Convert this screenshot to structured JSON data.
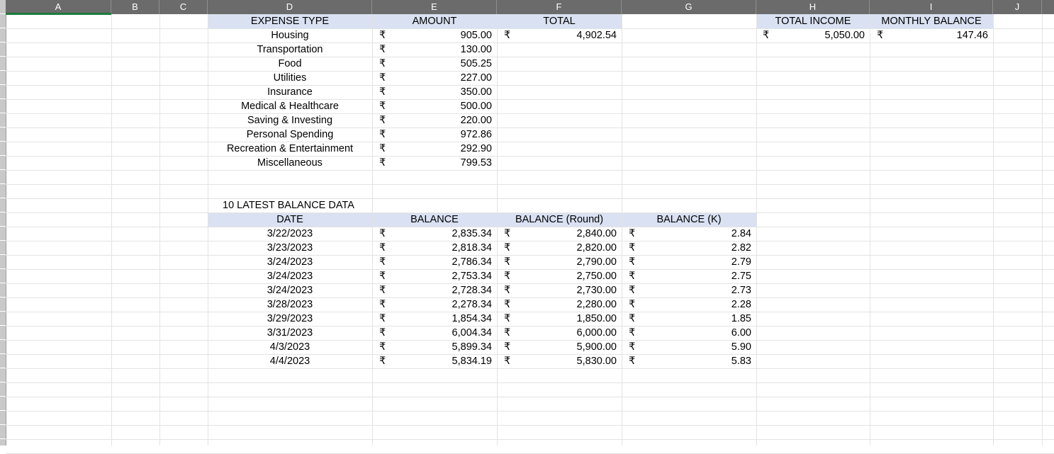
{
  "columns": [
    "A",
    "B",
    "C",
    "D",
    "E",
    "F",
    "G",
    "H",
    "I",
    "J"
  ],
  "currency_symbol": "₹",
  "colors": {
    "header_fill": "#d9e1f2",
    "col_header_bg": "#6b6b6b",
    "selection": "#1d7a3c"
  },
  "expense": {
    "headers": {
      "type": "EXPENSE TYPE",
      "amount": "AMOUNT",
      "total": "TOTAL"
    },
    "rows": [
      {
        "type": "Housing",
        "amount": "905.00"
      },
      {
        "type": "Transportation",
        "amount": "130.00"
      },
      {
        "type": "Food",
        "amount": "505.25"
      },
      {
        "type": "Utilities",
        "amount": "227.00"
      },
      {
        "type": "Insurance",
        "amount": "350.00"
      },
      {
        "type": "Medical & Healthcare",
        "amount": "500.00"
      },
      {
        "type": "Saving & Investing",
        "amount": "220.00"
      },
      {
        "type": "Personal Spending",
        "amount": "972.86"
      },
      {
        "type": "Recreation & Entertainment",
        "amount": "292.90"
      },
      {
        "type": "Miscellaneous",
        "amount": "799.53"
      }
    ],
    "total_value": "4,902.54"
  },
  "income": {
    "headers": {
      "total_income": "TOTAL INCOME",
      "monthly_balance": "MONTHLY BALANCE"
    },
    "total_income_value": "5,050.00",
    "monthly_balance_value": "147.46"
  },
  "balance": {
    "title": "10 LATEST BALANCE DATA",
    "headers": {
      "date": "DATE",
      "balance": "BALANCE",
      "round": "BALANCE (Round)",
      "k": "BALANCE (K)"
    },
    "rows": [
      {
        "date": "3/22/2023",
        "balance": "2,835.34",
        "round": "2,840.00",
        "k": "2.84"
      },
      {
        "date": "3/23/2023",
        "balance": "2,818.34",
        "round": "2,820.00",
        "k": "2.82"
      },
      {
        "date": "3/24/2023",
        "balance": "2,786.34",
        "round": "2,790.00",
        "k": "2.79"
      },
      {
        "date": "3/24/2023",
        "balance": "2,753.34",
        "round": "2,750.00",
        "k": "2.75"
      },
      {
        "date": "3/24/2023",
        "balance": "2,728.34",
        "round": "2,730.00",
        "k": "2.73"
      },
      {
        "date": "3/28/2023",
        "balance": "2,278.34",
        "round": "2,280.00",
        "k": "2.28"
      },
      {
        "date": "3/29/2023",
        "balance": "1,854.34",
        "round": "1,850.00",
        "k": "1.85"
      },
      {
        "date": "3/31/2023",
        "balance": "6,004.34",
        "round": "6,000.00",
        "k": "6.00"
      },
      {
        "date": "4/3/2023",
        "balance": "5,899.34",
        "round": "5,900.00",
        "k": "5.90"
      },
      {
        "date": "4/4/2023",
        "balance": "5,834.19",
        "round": "5,830.00",
        "k": "5.83"
      }
    ]
  }
}
